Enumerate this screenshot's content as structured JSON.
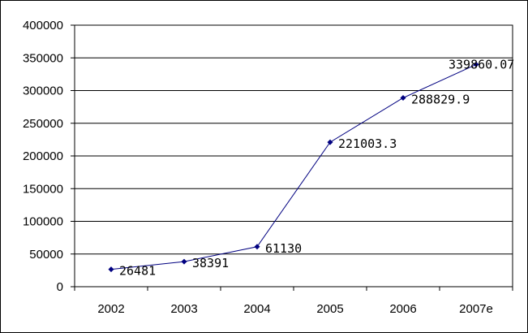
{
  "chart_data": {
    "type": "line",
    "title": "",
    "xlabel": "",
    "ylabel": "",
    "categories": [
      "2002",
      "2003",
      "2004",
      "2005",
      "2006",
      "2007e"
    ],
    "series": [
      {
        "values": [
          26481,
          38391,
          61130,
          221003.3,
          288829.9,
          339860.07
        ],
        "data_labels": [
          "26481",
          "38391",
          "61130",
          "221003.3",
          "288829.9",
          "339860.07"
        ],
        "color": "#000080"
      }
    ],
    "ylim": [
      0,
      400000
    ],
    "yticks": [
      0,
      50000,
      100000,
      150000,
      200000,
      250000,
      300000,
      350000,
      400000
    ],
    "ytick_labels": [
      "0",
      "50000",
      "100000",
      "150000",
      "200000",
      "250000",
      "300000",
      "350000",
      "400000"
    ],
    "grid": "horizontal",
    "legend": "none"
  }
}
